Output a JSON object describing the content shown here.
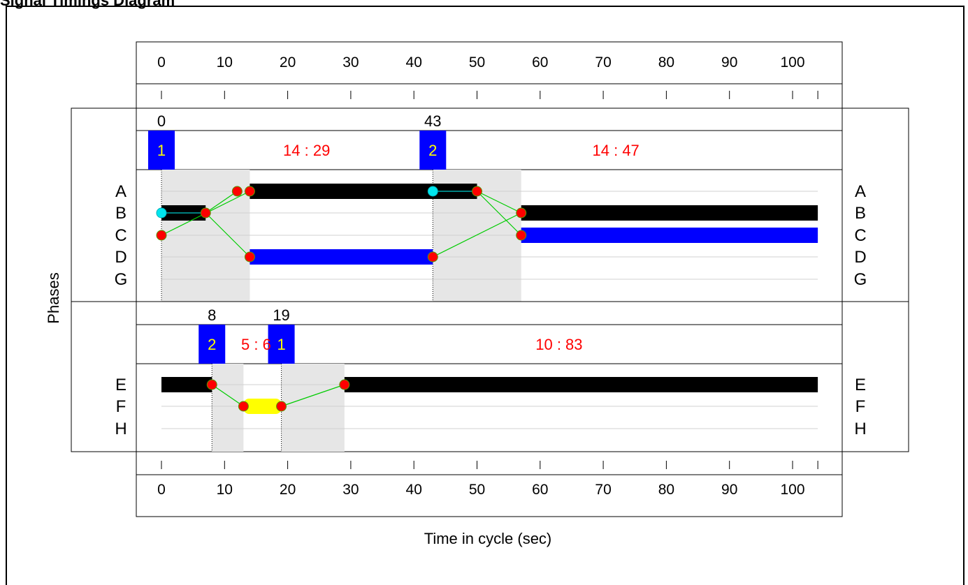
{
  "title": "Signal Timings Diagram",
  "axis": {
    "ticks": [
      0,
      10,
      20,
      30,
      40,
      50,
      60,
      70,
      80,
      90,
      100
    ],
    "tick_labels": [
      "0",
      "10",
      "20",
      "30",
      "40",
      "50",
      "60",
      "70",
      "80",
      "90",
      "100"
    ],
    "max": 104,
    "xlabel": "Time in cycle (sec)",
    "ylabel": "Phases"
  },
  "streams": [
    {
      "phase_labels": [
        "A",
        "B",
        "C",
        "D",
        "G"
      ],
      "stages": [
        {
          "number": "1",
          "start_time": "0",
          "t": 0
        },
        {
          "number": "2",
          "start_time": "43",
          "t": 43
        }
      ],
      "ratios": [
        {
          "text": "14 : 29",
          "t": 23
        },
        {
          "text": "14 : 47",
          "t": 72
        }
      ],
      "intergreens": [
        [
          0,
          14
        ],
        [
          43,
          57
        ]
      ],
      "stage_lines": [
        0,
        43
      ],
      "bars": [
        {
          "row": 0,
          "from": 14,
          "to": 50,
          "color": "#000000"
        },
        {
          "row": 1,
          "from": 0,
          "to": 7,
          "color": "#000000"
        },
        {
          "row": 1,
          "from": 57,
          "to": 104,
          "color": "#000000"
        },
        {
          "row": 2,
          "from": 57,
          "to": 104,
          "color": "#0000ff"
        },
        {
          "row": 3,
          "from": 14,
          "to": 43,
          "color": "#0000ff"
        }
      ],
      "links": [
        {
          "from": [
            7,
            1
          ],
          "to": [
            12,
            0
          ]
        },
        {
          "from": [
            7,
            1
          ],
          "to": [
            14,
            3
          ]
        },
        {
          "from": [
            0,
            2
          ],
          "to": [
            14,
            0
          ]
        },
        {
          "from": [
            43,
            3
          ],
          "to": [
            57,
            1
          ]
        },
        {
          "from": [
            50,
            0
          ],
          "to": [
            57,
            2
          ]
        },
        {
          "from": [
            50,
            0
          ],
          "to": [
            57,
            1
          ]
        },
        {
          "from": [
            0,
            1
          ],
          "to": [
            7,
            1
          ]
        },
        {
          "from": [
            43,
            0
          ],
          "to": [
            50,
            0
          ]
        }
      ],
      "dots": [
        {
          "t": 0,
          "row": 1,
          "kind": "cyan"
        },
        {
          "t": 0,
          "row": 2,
          "kind": "red"
        },
        {
          "t": 7,
          "row": 1,
          "kind": "red"
        },
        {
          "t": 12,
          "row": 0,
          "kind": "red"
        },
        {
          "t": 14,
          "row": 0,
          "kind": "red"
        },
        {
          "t": 14,
          "row": 3,
          "kind": "red"
        },
        {
          "t": 43,
          "row": 0,
          "kind": "cyan"
        },
        {
          "t": 43,
          "row": 3,
          "kind": "red"
        },
        {
          "t": 50,
          "row": 0,
          "kind": "red"
        },
        {
          "t": 57,
          "row": 1,
          "kind": "red"
        },
        {
          "t": 57,
          "row": 2,
          "kind": "red"
        }
      ]
    },
    {
      "phase_labels": [
        "E",
        "F",
        "H"
      ],
      "stages": [
        {
          "number": "2",
          "start_time": "8",
          "t": 8
        },
        {
          "number": "1",
          "start_time": "19",
          "t": 19
        }
      ],
      "ratios": [
        {
          "text": "5 : 6",
          "t": 15
        },
        {
          "text": "10 : 83",
          "t": 63
        }
      ],
      "intergreens": [
        [
          8,
          13
        ],
        [
          19,
          29
        ]
      ],
      "stage_lines": [
        8,
        19
      ],
      "bars": [
        {
          "row": 0,
          "from": 0,
          "to": 8,
          "color": "#000000"
        },
        {
          "row": 0,
          "from": 29,
          "to": 104,
          "color": "#000000"
        },
        {
          "row": 1,
          "from": 13,
          "to": 19,
          "color": "#ffff00"
        }
      ],
      "links": [
        {
          "from": [
            8,
            0
          ],
          "to": [
            13,
            1
          ]
        },
        {
          "from": [
            19,
            1
          ],
          "to": [
            29,
            0
          ]
        }
      ],
      "dots": [
        {
          "t": 8,
          "row": 0,
          "kind": "red"
        },
        {
          "t": 13,
          "row": 1,
          "kind": "red"
        },
        {
          "t": 19,
          "row": 1,
          "kind": "red"
        },
        {
          "t": 29,
          "row": 0,
          "kind": "red"
        }
      ]
    }
  ],
  "colors": {
    "stage_box": "#0000ff",
    "stage_number": "#ffff00",
    "ratio_text": "#ff0000",
    "intergreen": "#e6e6e6",
    "link": "#00cc00",
    "dot_red": "#ff0000",
    "dot_cyan": "#00e5ee",
    "row_line": "#d0d0d0"
  }
}
